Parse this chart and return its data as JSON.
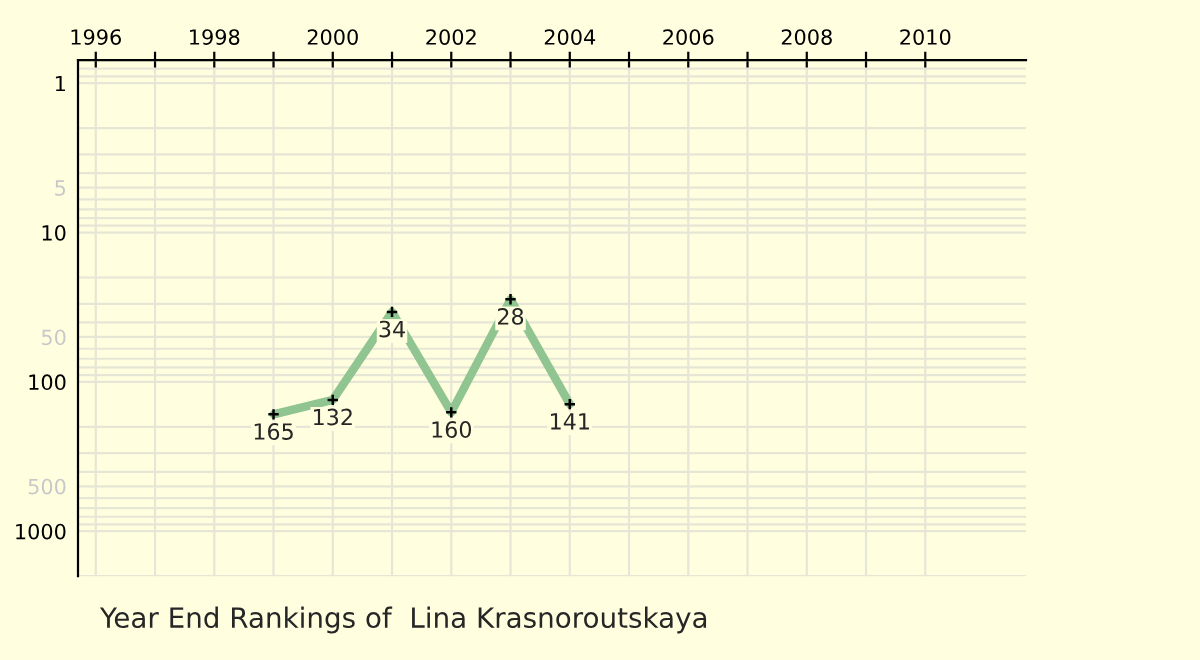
{
  "chart_data": {
    "type": "line",
    "title": "Year End Rankings of  Lina Krasnoroutskaya",
    "x": [
      1999,
      2000,
      2001,
      2002,
      2003,
      2004
    ],
    "series": [
      {
        "color": "#90c490",
        "values": [
          165,
          132,
          34,
          160,
          28,
          141
        ]
      }
    ],
    "data_labels": true,
    "marker": "cross",
    "log": true,
    "grid": true,
    "line_style": "solid",
    "xlim": [
      1995.7,
      2011.7
    ],
    "xticks": [
      1996,
      {
        "value": 1997,
        "label": null
      },
      1998,
      {
        "value": 1999,
        "label": null
      },
      2000,
      {
        "value": 2001,
        "label": null
      },
      2002,
      {
        "value": 2003,
        "label": null
      },
      2004,
      {
        "value": 2005,
        "label": null
      },
      2006,
      {
        "value": 2007,
        "label": null
      },
      2008,
      {
        "value": 2009,
        "label": null
      },
      2010
    ],
    "ylim": [
      2000,
      0.7
    ],
    "yticks": [
      1,
      5,
      10,
      50,
      100,
      500,
      1000
    ]
  }
}
